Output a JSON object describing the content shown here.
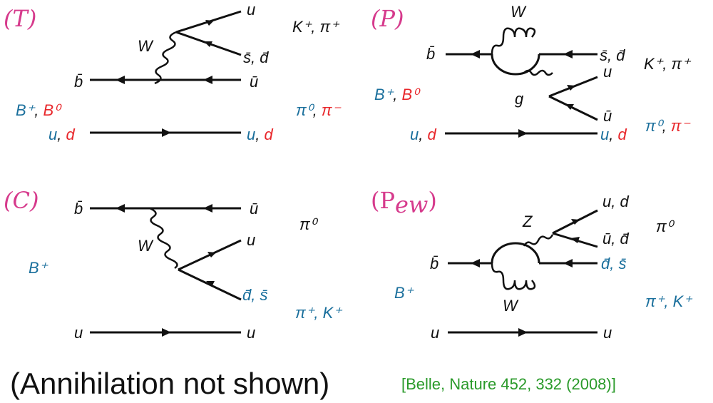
{
  "panels": {
    "T": {
      "tag": "(T)",
      "W": "W",
      "u_top": "u",
      "sd_top": "s̄, d̄",
      "ubar": "ū",
      "bbar": "b̄",
      "meson_top": "K⁺, π⁺",
      "B_blue": "B⁺",
      "B_red": "B⁰",
      "pi_blue": "π⁰",
      "pi_red": "π⁻",
      "spec_left_blue": "u",
      "spec_left_red": "d",
      "spec_right_blue": "u",
      "spec_right_red": "d"
    },
    "P": {
      "tag": "(P)",
      "W": "W",
      "bbar": "b̄",
      "sd": "s̄, d̄",
      "meson_top": "K⁺, π⁺",
      "u": "u",
      "g": "g",
      "ubar": "ū",
      "B_blue": "B⁺",
      "B_red": "B⁰",
      "pi_blue": "π⁰",
      "pi_red": "π⁻",
      "spec_left_blue": "u",
      "spec_left_red": "d",
      "spec_right_blue": "u",
      "spec_right_red": "d"
    },
    "C": {
      "tag": "(C)",
      "bbar": "b̄",
      "ubar": "ū",
      "pi0": "π⁰",
      "W": "W",
      "u": "u",
      "B": "B⁺",
      "ds": "d̄, s̄",
      "meson": "π⁺, K⁺",
      "spec_left": "u",
      "spec_right": "u"
    },
    "Pew": {
      "tag_main": "(P",
      "tag_sub": "ew",
      "tag_close": ")",
      "Z": "Z",
      "ud": "u, d",
      "ubar_dbar": "ū, d̄",
      "pi0": "π⁰",
      "bbar": "b̄",
      "ds": "d̄, s̄",
      "B": "B⁺",
      "meson": "π⁺, K⁺",
      "W": "W",
      "spec_left": "u",
      "spec_right": "u"
    }
  },
  "footer": {
    "note": "(Annihilation not shown)",
    "citation": "[Belle, Nature 452, 332 (2008)]"
  },
  "colors": {
    "quark_blue": "#1a6f9c",
    "quark_red": "#e8262a",
    "tag_magenta": "#d63a8c",
    "citation_green": "#2a9a2a"
  }
}
